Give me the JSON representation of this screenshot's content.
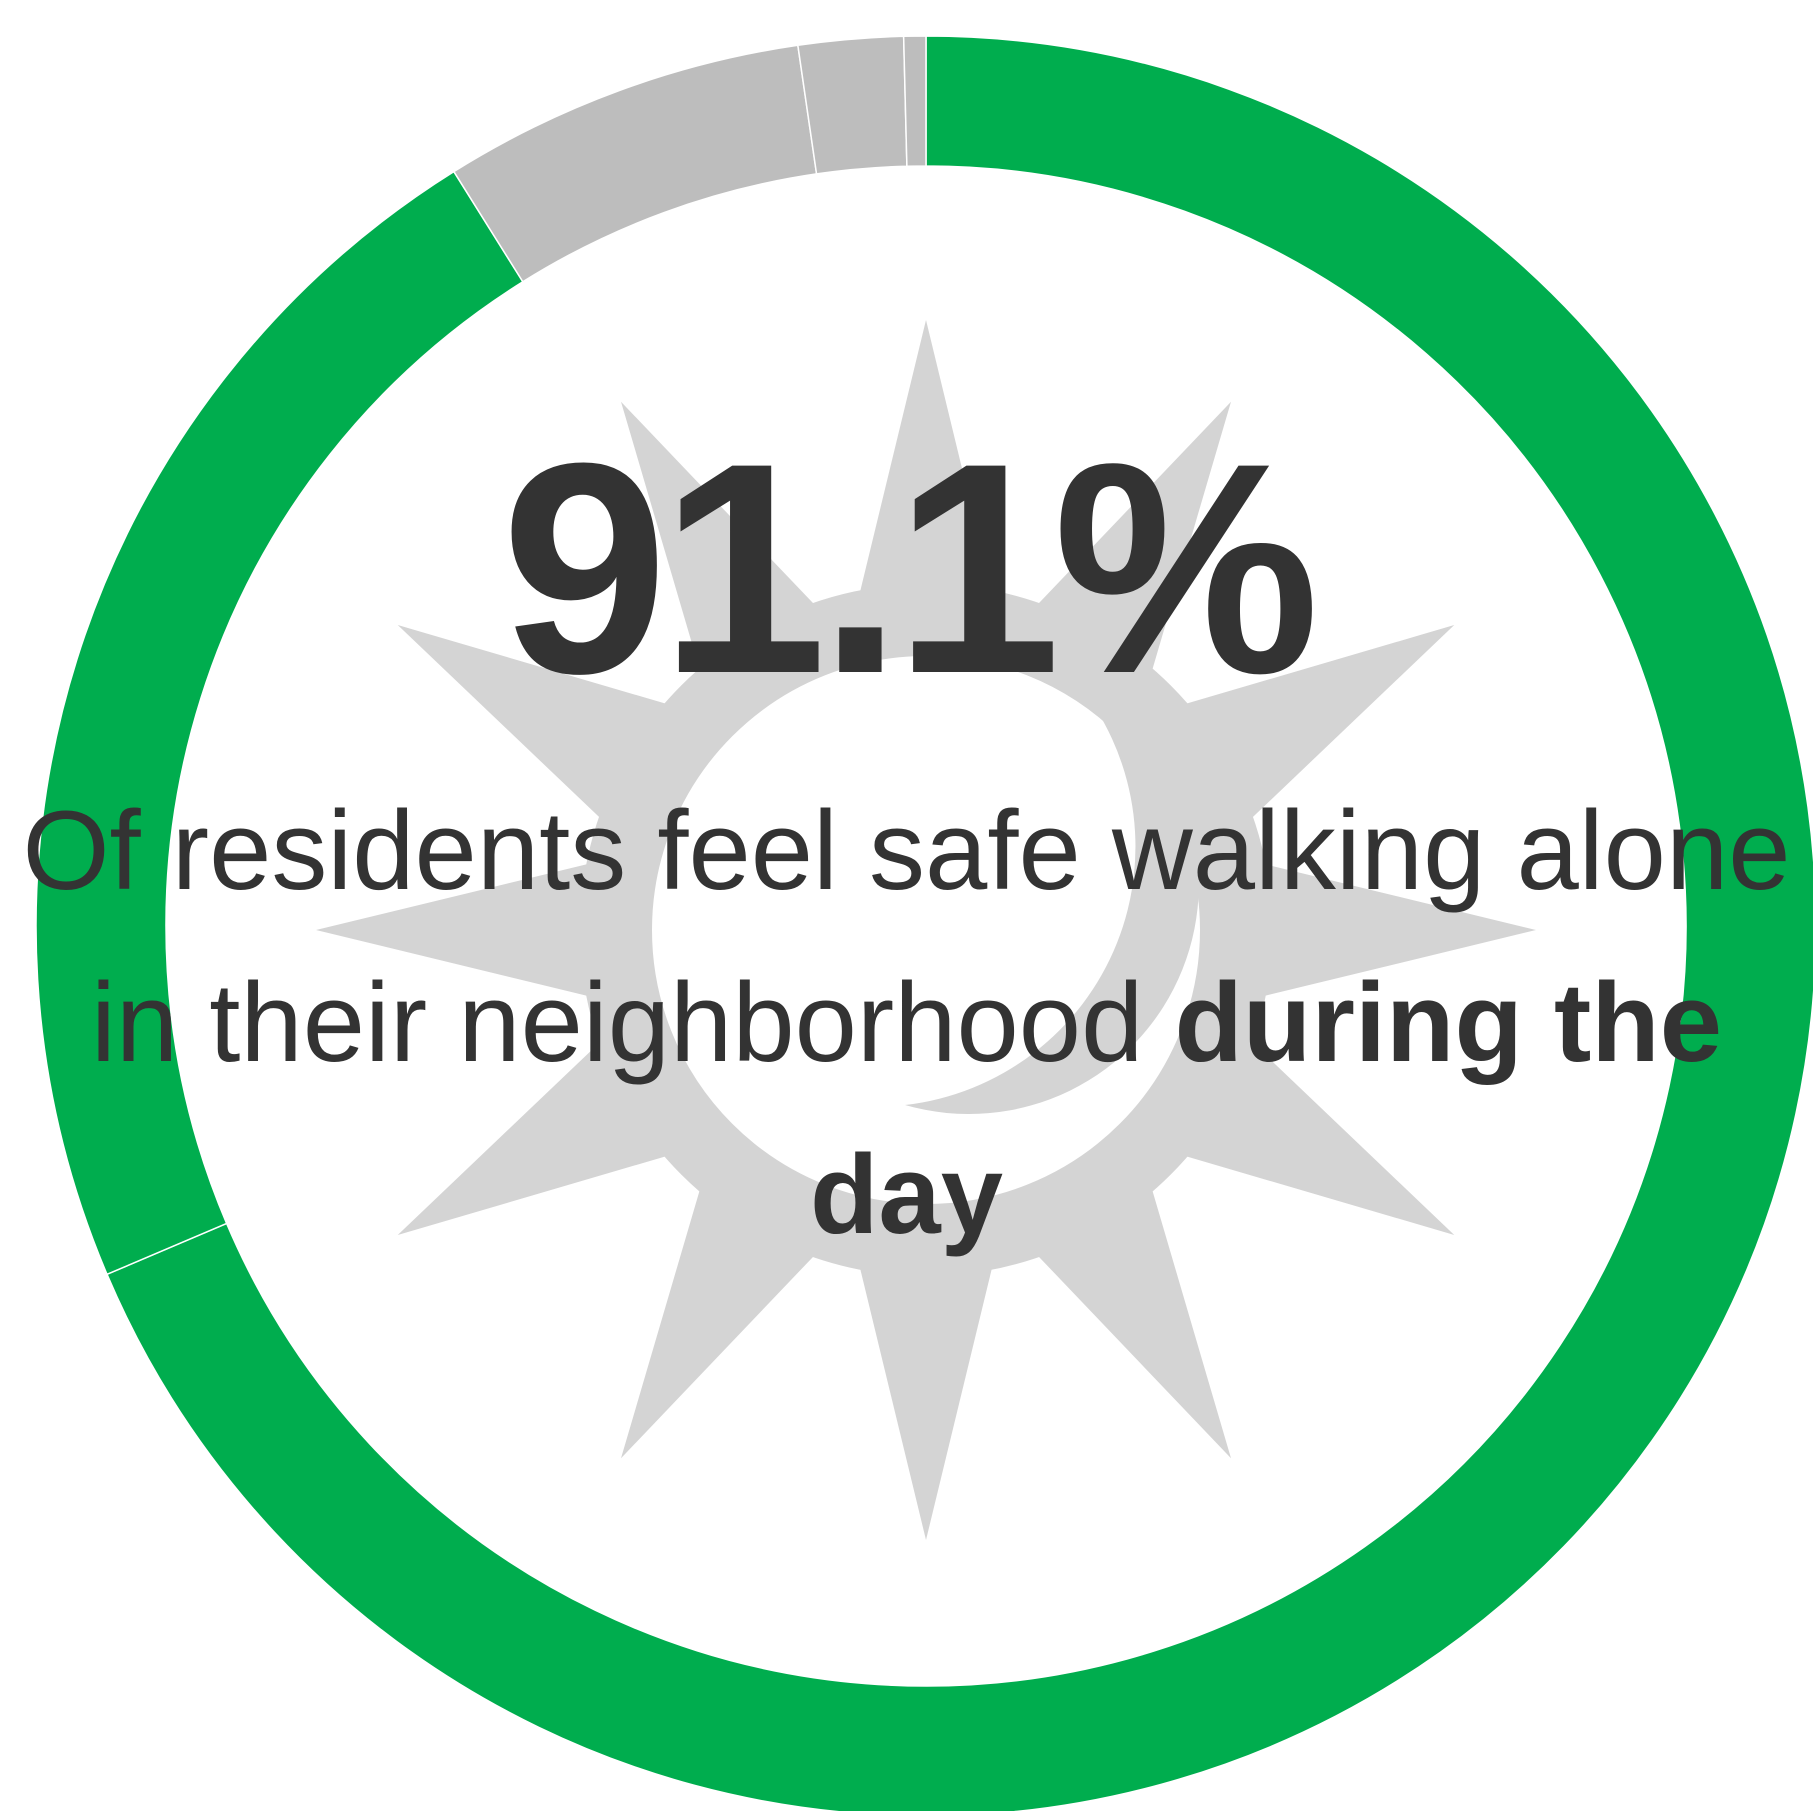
{
  "colors": {
    "safe": "#00ad4e",
    "other": "#bdbdbd",
    "icon": "#d4d4d4",
    "text": "#333333"
  },
  "icon": "sun-icon",
  "headline": {
    "value": "91.1%",
    "caption_normal": "Of residents feel safe walking alone in their neighborhood",
    "caption_bold": "during the day"
  },
  "chart_data": {
    "type": "pie",
    "style": "donut",
    "unit": "%",
    "slices": [
      {
        "value": 68.6,
        "color": "#00ad4e"
      },
      {
        "value": 22.5,
        "color": "#00ad4e"
      },
      {
        "value": 6.6,
        "color": "#bdbdbd"
      },
      {
        "value": 1.9,
        "color": "#bdbdbd"
      },
      {
        "value": 0.4,
        "color": "#bdbdbd"
      }
    ]
  }
}
